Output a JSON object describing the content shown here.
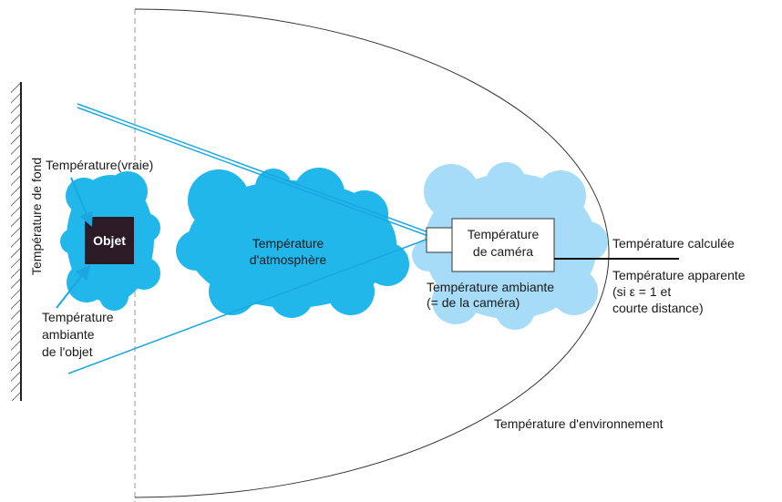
{
  "labels": {
    "background": "Température de fond",
    "true_temp": "Température(vraie)",
    "object": "Objet",
    "object_ambient": [
      "Température",
      "ambiante",
      "de l'objet"
    ],
    "atmosphere": [
      "Température",
      "d'atmosphère"
    ],
    "camera": [
      "Température",
      "de caméra"
    ],
    "camera_ambient": [
      "Température ambiante",
      "(= de la caméra)"
    ],
    "calculated": "Température calculée",
    "apparent": [
      "Température apparente",
      "(si ε = 1 et",
      "courte distance)"
    ],
    "environment": "Température d'environnement"
  }
}
